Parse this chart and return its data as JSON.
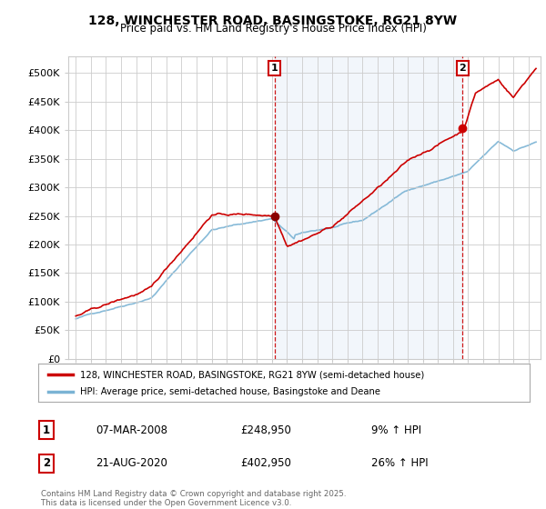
{
  "title": "128, WINCHESTER ROAD, BASINGSTOKE, RG21 8YW",
  "subtitle": "Price paid vs. HM Land Registry's House Price Index (HPI)",
  "ylabel_ticks": [
    "£0",
    "£50K",
    "£100K",
    "£150K",
    "£200K",
    "£250K",
    "£300K",
    "£350K",
    "£400K",
    "£450K",
    "£500K"
  ],
  "ytick_values": [
    0,
    50000,
    100000,
    150000,
    200000,
    250000,
    300000,
    350000,
    400000,
    450000,
    500000
  ],
  "ylim": [
    0,
    530000
  ],
  "background_color": "#ffffff",
  "grid_color": "#cccccc",
  "fill_color": "#dce8f5",
  "line1_color": "#cc0000",
  "line2_color": "#7ab3d4",
  "sale1_x": 2008.18,
  "sale1_y": 248950,
  "sale2_x": 2020.64,
  "sale2_y": 402950,
  "vline1_x": 2008.18,
  "vline2_x": 2020.64,
  "legend_line1": "128, WINCHESTER ROAD, BASINGSTOKE, RG21 8YW (semi-detached house)",
  "legend_line2": "HPI: Average price, semi-detached house, Basingstoke and Deane",
  "table_rows": [
    [
      "1",
      "07-MAR-2008",
      "£248,950",
      "9% ↑ HPI"
    ],
    [
      "2",
      "21-AUG-2020",
      "£402,950",
      "26% ↑ HPI"
    ]
  ],
  "footer": "Contains HM Land Registry data © Crown copyright and database right 2025.\nThis data is licensed under the Open Government Licence v3.0.",
  "xmin": 1994.5,
  "xmax": 2025.8
}
